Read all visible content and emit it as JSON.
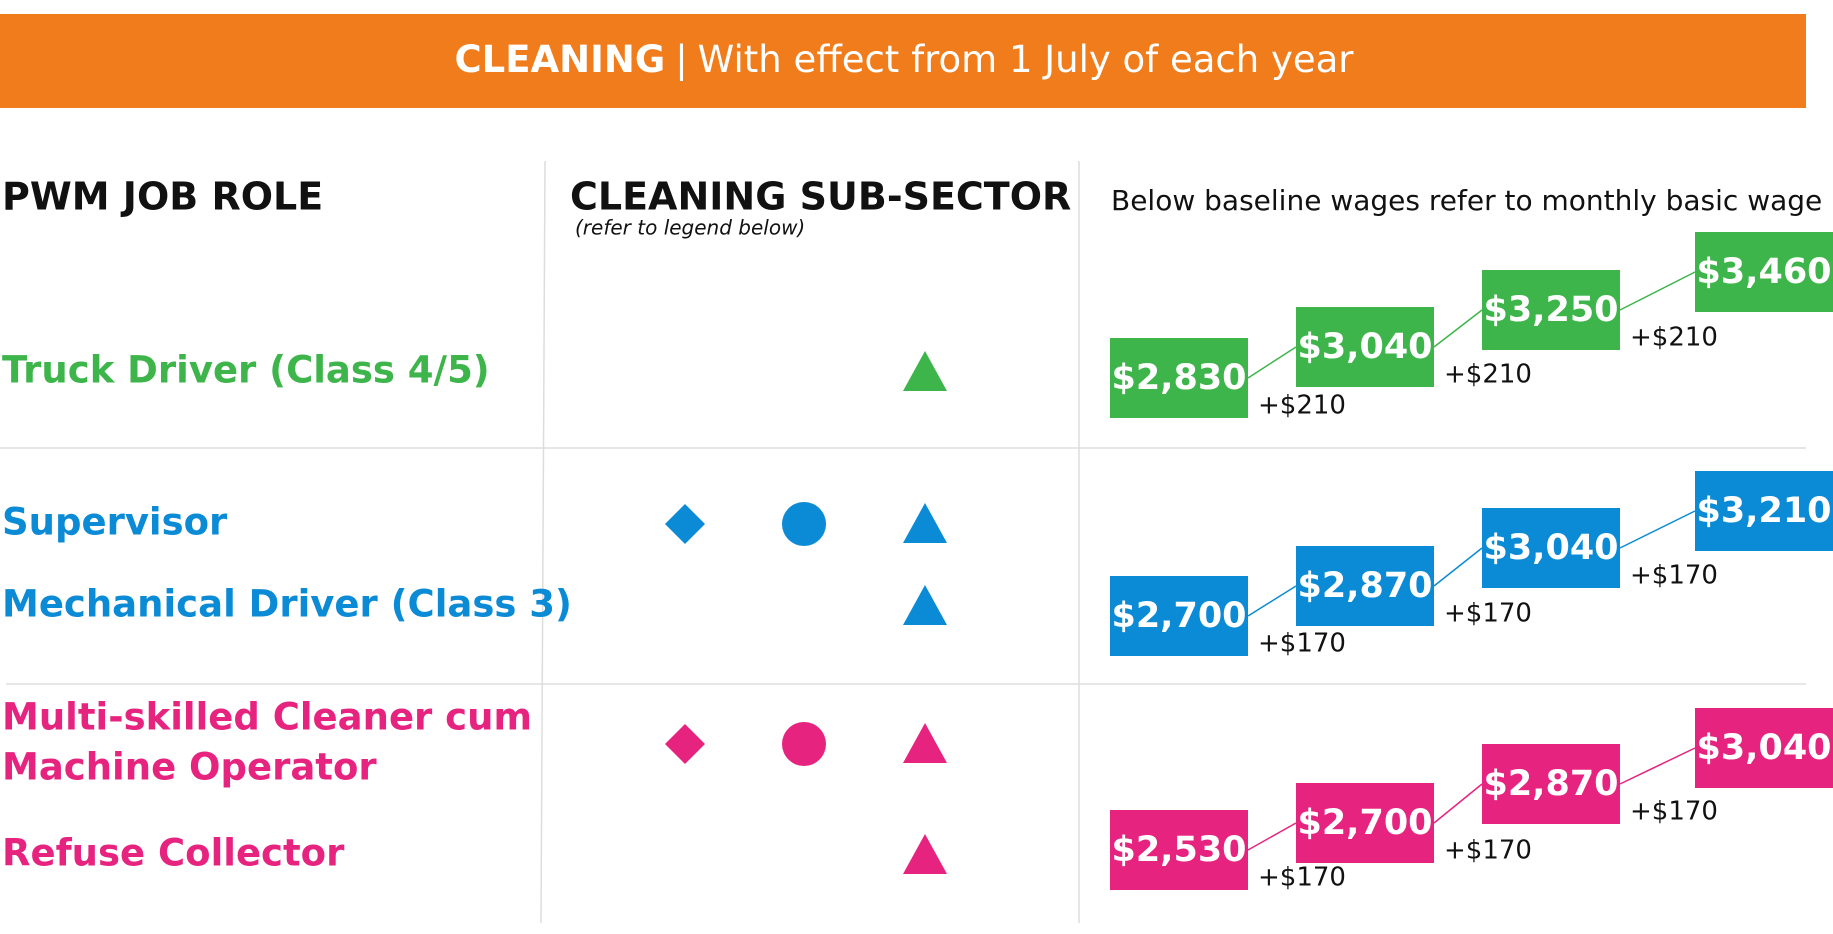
{
  "header": {
    "title": "CLEANING",
    "separator": "|",
    "subtitle": "With effect from 1 July of each year"
  },
  "columns": {
    "role": "PWM JOB ROLE",
    "sector": "CLEANING SUB-SECTOR",
    "sector_note": "(refer to legend below)",
    "wages": "Below baseline wages refer to monthly basic wage"
  },
  "groups": [
    {
      "color": "#3db54a",
      "roles": [
        {
          "lines": [
            "Truck Driver (Class 4/5)"
          ],
          "symbols": [
            "triangle"
          ]
        }
      ],
      "wages": [
        "$2,830",
        "$3,040",
        "$3,250",
        "$3,460"
      ],
      "increments": [
        "+$210",
        "+$210",
        "+$210"
      ]
    },
    {
      "color": "#0b8bd5",
      "roles": [
        {
          "lines": [
            "Supervisor"
          ],
          "symbols": [
            "diamond",
            "circle",
            "triangle"
          ]
        },
        {
          "lines": [
            "Mechanical Driver (Class 3)"
          ],
          "symbols": [
            "triangle"
          ]
        }
      ],
      "wages": [
        "$2,700",
        "$2,870",
        "$3,040",
        "$3,210"
      ],
      "increments": [
        "+$170",
        "+$170",
        "+$170"
      ]
    },
    {
      "color": "#e6247f",
      "roles": [
        {
          "lines": [
            "Multi-skilled Cleaner cum",
            "Machine Operator"
          ],
          "symbols": [
            "diamond",
            "circle",
            "triangle"
          ]
        },
        {
          "lines": [
            "Refuse Collector"
          ],
          "symbols": [
            "triangle"
          ]
        }
      ],
      "wages": [
        "$2,530",
        "$2,700",
        "$2,870",
        "$3,040"
      ],
      "increments": [
        "+$170",
        "+$170",
        "+$170"
      ]
    }
  ]
}
